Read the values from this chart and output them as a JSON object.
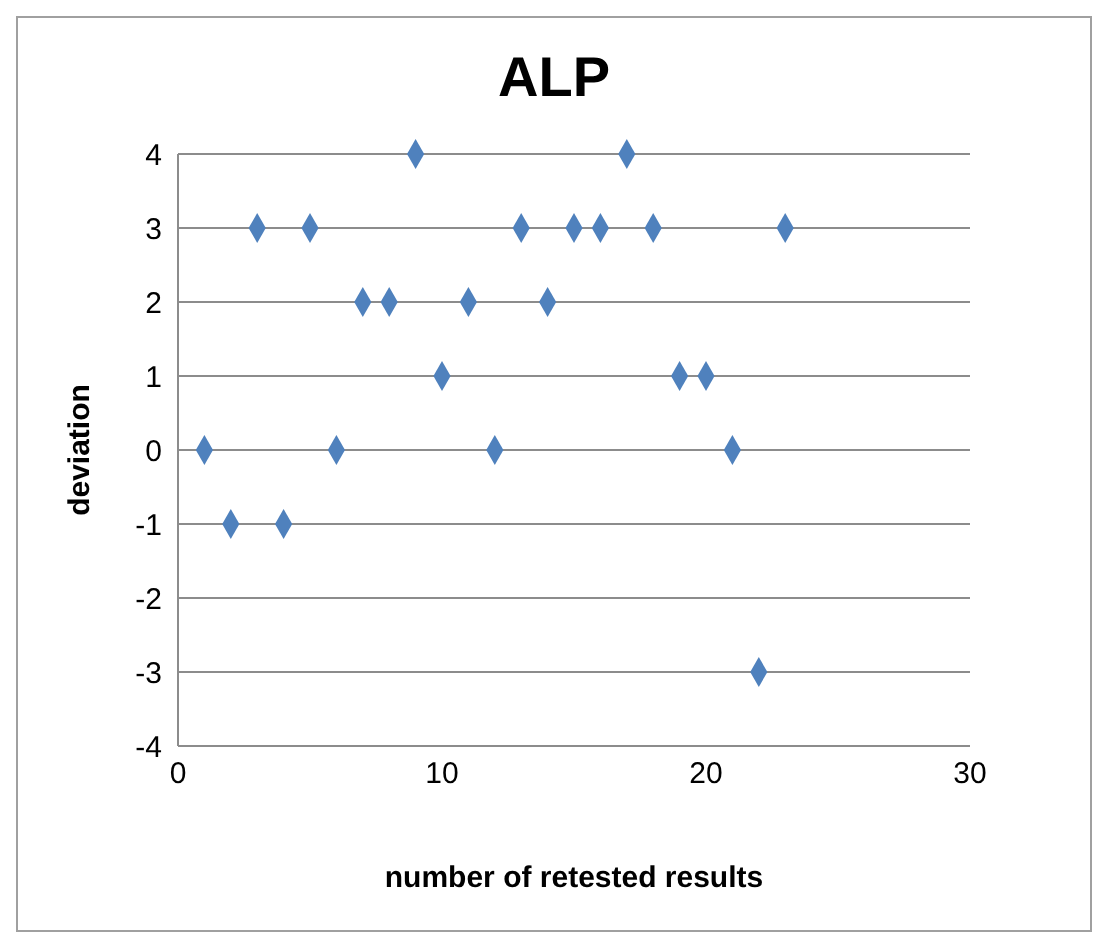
{
  "chart_data": {
    "type": "scatter",
    "title": "ALP",
    "xlabel": "number of retested results",
    "ylabel": "deviation",
    "x": [
      1,
      2,
      3,
      4,
      5,
      6,
      7,
      8,
      9,
      10,
      11,
      12,
      13,
      14,
      15,
      16,
      17,
      18,
      19,
      20,
      21,
      22,
      23
    ],
    "series": [
      {
        "color": "#4f81bd",
        "values": [
          0,
          -1,
          3,
          -1,
          3,
          0,
          2,
          2,
          4,
          1,
          2,
          0,
          3,
          2,
          3,
          3,
          4,
          3,
          1,
          1,
          0,
          -3,
          3
        ]
      }
    ],
    "xlim": [
      0,
      30
    ],
    "xticks": [
      0,
      10,
      20,
      30
    ],
    "ylim": [
      -4,
      4
    ],
    "yticks": [
      -4,
      -3,
      -2,
      -1,
      0,
      1,
      2,
      3,
      4
    ],
    "grid": "y",
    "marker": "diamond"
  }
}
